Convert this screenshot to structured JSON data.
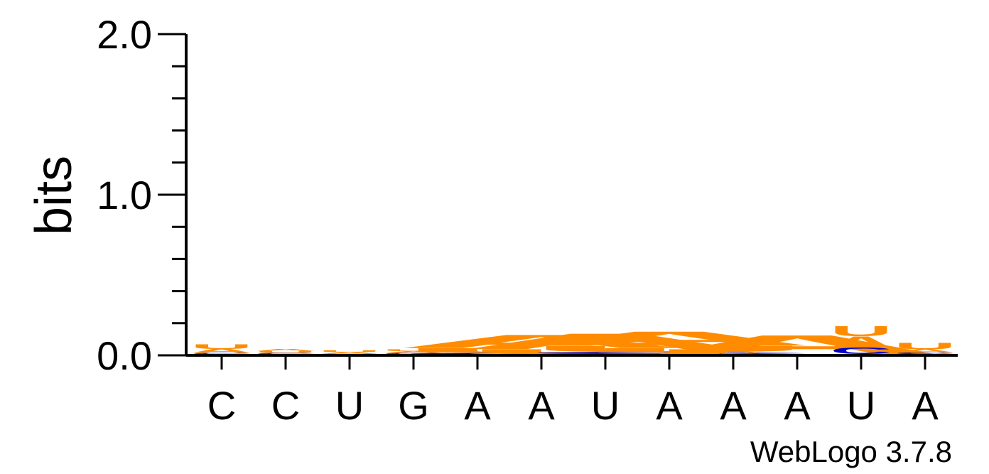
{
  "chart_data": {
    "type": "sequence-logo",
    "ylabel": "bits",
    "ylim": [
      0,
      2.0
    ],
    "yticks": [
      {
        "value": 0.0,
        "label": "0.0"
      },
      {
        "value": 1.0,
        "label": "1.0"
      },
      {
        "value": 2.0,
        "label": "2.0"
      }
    ],
    "yminor_step": 0.2,
    "categories": [
      "C",
      "C",
      "U",
      "G",
      "A",
      "A",
      "U",
      "A",
      "A",
      "A",
      "U",
      "A"
    ],
    "colors": {
      "A": "#ff8c00",
      "U": "#ff8c00",
      "C": "#0000cc",
      "G": "#0000cc"
    },
    "columns": [
      {
        "letters": [
          {
            "letter": "C",
            "bits": 0.003
          },
          {
            "letter": "A",
            "bits": 0.025
          },
          {
            "letter": "U",
            "bits": 0.03
          }
        ],
        "wide": false
      },
      {
        "letters": [
          {
            "letter": "C",
            "bits": 0.003
          },
          {
            "letter": "U",
            "bits": 0.01
          },
          {
            "letter": "A",
            "bits": 0.015
          }
        ],
        "wide": false
      },
      {
        "letters": [
          {
            "letter": "A",
            "bits": 0.012
          },
          {
            "letter": "U",
            "bits": 0.012
          }
        ],
        "wide": false
      },
      {
        "letters": [
          {
            "letter": "C",
            "bits": 0.006
          },
          {
            "letter": "A",
            "bits": 0.012
          },
          {
            "letter": "U",
            "bits": 0.012
          }
        ],
        "wide": false
      },
      {
        "letters": [],
        "wide": false
      },
      {
        "letters": [
          {
            "letter": "C",
            "bits": 0.004
          },
          {
            "letter": "U",
            "bits": 0.03
          },
          {
            "letter": "A",
            "bits": 0.085
          }
        ],
        "wide": true
      },
      {
        "letters": [
          {
            "letter": "U",
            "bits": 0.03
          },
          {
            "letter": "A",
            "bits": 0.1
          }
        ],
        "wide": true
      },
      {
        "letters": [
          {
            "letter": "C",
            "bits": 0.012
          },
          {
            "letter": "U",
            "bits": 0.04
          },
          {
            "letter": "A",
            "bits": 0.09
          }
        ],
        "wide": true
      },
      {
        "letters": [
          {
            "letter": "C",
            "bits": 0.004
          },
          {
            "letter": "A",
            "bits": 0.015
          },
          {
            "letter": "U",
            "bits": 0.012
          }
        ],
        "wide": false
      },
      {
        "letters": [
          {
            "letter": "A",
            "bits": 0.12
          }
        ],
        "wide": true
      },
      {
        "letters": [
          {
            "letter": "C",
            "bits": 0.04
          },
          {
            "letter": "A",
            "bits": 0.07
          },
          {
            "letter": "U",
            "bits": 0.065
          }
        ],
        "wide": false
      },
      {
        "letters": [
          {
            "letter": "C",
            "bits": 0.008
          },
          {
            "letter": "A",
            "bits": 0.02
          },
          {
            "letter": "U",
            "bits": 0.04
          }
        ],
        "wide": false
      }
    ]
  },
  "credit": "WebLogo 3.7.8"
}
